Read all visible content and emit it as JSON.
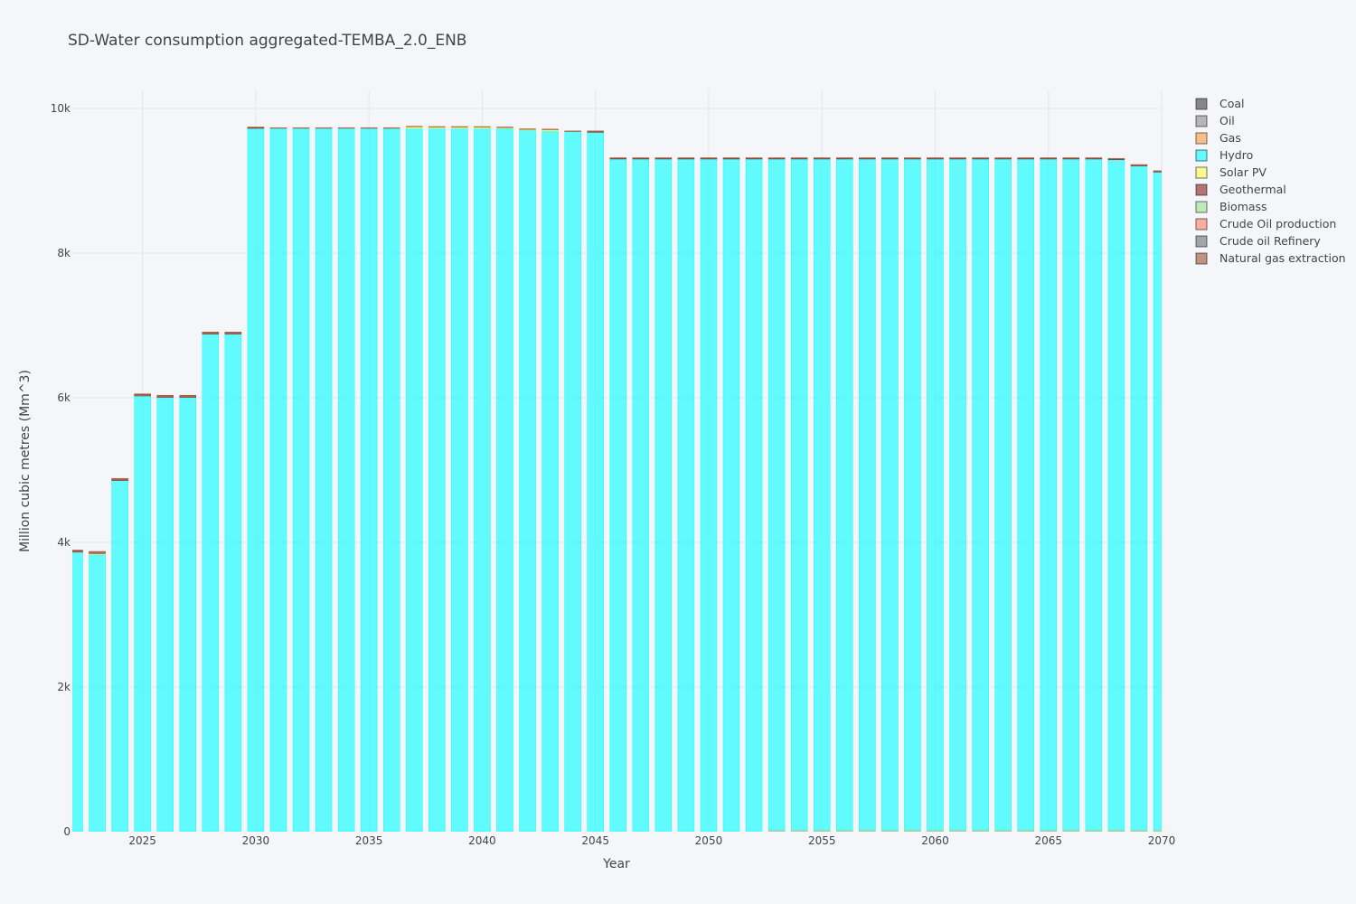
{
  "chart_data": {
    "type": "bar",
    "stacked": true,
    "title": "SD-Water consumption aggregated-TEMBA_2.0_ENB",
    "xlabel": "Year",
    "ylabel": "Million cubic metres (Mm^3)",
    "xlim": [
      2021.9,
      2070
    ],
    "ylim": [
      0,
      10250
    ],
    "x_ticks": [
      2025,
      2030,
      2035,
      2040,
      2045,
      2050,
      2055,
      2060,
      2065,
      2070
    ],
    "x_tick_labels": [
      "2025",
      "2030",
      "2035",
      "2040",
      "2045",
      "2050",
      "2055",
      "2060",
      "2065",
      "2070"
    ],
    "y_ticks": [
      0,
      2000,
      4000,
      6000,
      8000,
      10000
    ],
    "y_tick_labels": [
      "0",
      "2k",
      "4k",
      "6k",
      "8k",
      "10k"
    ],
    "grid": true,
    "legend_position": "right",
    "years": [
      2022,
      2023,
      2024,
      2025,
      2026,
      2027,
      2028,
      2029,
      2030,
      2031,
      2032,
      2033,
      2034,
      2035,
      2036,
      2037,
      2038,
      2039,
      2040,
      2041,
      2042,
      2043,
      2044,
      2045,
      2046,
      2047,
      2048,
      2049,
      2050,
      2051,
      2052,
      2053,
      2054,
      2055,
      2056,
      2057,
      2058,
      2059,
      2060,
      2061,
      2062,
      2063,
      2064,
      2065,
      2066,
      2067,
      2068,
      2069,
      2070
    ],
    "series": [
      {
        "name": "Coal",
        "color": "#3d3d3d",
        "values": [
          0,
          0,
          0,
          0,
          0,
          0,
          0,
          0,
          0,
          0,
          0,
          0,
          0,
          0,
          0,
          0,
          0,
          0,
          0,
          0,
          0,
          0,
          0,
          0,
          0,
          0,
          0,
          0,
          0,
          0,
          0,
          0,
          0,
          0,
          0,
          0,
          0,
          0,
          0,
          0,
          0,
          0,
          0,
          0,
          0,
          0,
          0,
          0,
          0
        ]
      },
      {
        "name": "Oil",
        "color": "#8c8c8c",
        "values": [
          0,
          0,
          0,
          0,
          0,
          0,
          0,
          0,
          0,
          0,
          0,
          0,
          0,
          0,
          0,
          0,
          0,
          0,
          0,
          0,
          0,
          0,
          0,
          0,
          0,
          0,
          0,
          0,
          0,
          0,
          0,
          0,
          0,
          0,
          0,
          0,
          0,
          0,
          0,
          0,
          0,
          0,
          0,
          0,
          0,
          0,
          0,
          0,
          0
        ]
      },
      {
        "name": "Gas",
        "color": "#ff9a3c",
        "values": [
          0,
          0,
          0,
          0,
          0,
          0,
          0,
          0,
          0,
          0,
          0,
          0,
          0,
          0,
          0,
          0,
          0,
          0,
          0,
          0,
          0,
          0,
          0,
          0,
          0,
          0,
          0,
          0,
          0,
          0,
          0,
          15,
          15,
          15,
          15,
          15,
          15,
          15,
          15,
          15,
          15,
          15,
          15,
          15,
          15,
          15,
          15,
          15,
          15
        ]
      },
      {
        "name": "Hydro",
        "color": "#00ffff",
        "values": [
          3865,
          3840,
          4855,
          6025,
          6005,
          6005,
          6880,
          6880,
          9725,
          9725,
          9725,
          9725,
          9725,
          9725,
          9725,
          9725,
          9725,
          9725,
          9725,
          9725,
          9700,
          9690,
          9680,
          9675,
          9305,
          9305,
          9305,
          9305,
          9305,
          9305,
          9305,
          9290,
          9290,
          9290,
          9290,
          9290,
          9290,
          9290,
          9290,
          9290,
          9290,
          9290,
          9290,
          9290,
          9290,
          9290,
          9280,
          9195,
          9110
        ]
      },
      {
        "name": "Solar PV",
        "color": "#fbfb4a",
        "values": [
          0,
          5,
          0,
          0,
          0,
          0,
          0,
          0,
          0,
          0,
          0,
          0,
          0,
          0,
          0,
          20,
          15,
          15,
          15,
          10,
          10,
          15,
          0,
          0,
          0,
          0,
          0,
          0,
          0,
          0,
          0,
          0,
          0,
          0,
          0,
          0,
          0,
          0,
          0,
          0,
          0,
          0,
          0,
          0,
          0,
          0,
          0,
          0,
          0
        ]
      },
      {
        "name": "Geothermal",
        "color": "#8b1c1c",
        "values": [
          20,
          20,
          20,
          20,
          20,
          20,
          20,
          20,
          10,
          0,
          0,
          0,
          0,
          0,
          0,
          0,
          0,
          0,
          0,
          0,
          0,
          0,
          0,
          5,
          5,
          5,
          5,
          5,
          5,
          5,
          5,
          5,
          5,
          5,
          5,
          5,
          5,
          5,
          5,
          5,
          5,
          5,
          5,
          5,
          5,
          5,
          5,
          5,
          5
        ]
      },
      {
        "name": "Biomass",
        "color": "#98e28c",
        "values": [
          0,
          0,
          0,
          0,
          0,
          0,
          0,
          0,
          0,
          0,
          0,
          0,
          0,
          0,
          0,
          0,
          0,
          0,
          0,
          0,
          0,
          0,
          0,
          0,
          0,
          0,
          0,
          0,
          0,
          0,
          0,
          0,
          0,
          0,
          0,
          0,
          0,
          0,
          0,
          0,
          0,
          0,
          0,
          0,
          0,
          0,
          0,
          0,
          0
        ]
      },
      {
        "name": "Crude Oil production",
        "color": "#ff7f5e",
        "values": [
          0,
          0,
          0,
          0,
          0,
          0,
          0,
          0,
          0,
          0,
          0,
          0,
          0,
          0,
          0,
          0,
          0,
          0,
          0,
          0,
          0,
          0,
          0,
          0,
          0,
          0,
          0,
          0,
          0,
          0,
          0,
          0,
          0,
          0,
          0,
          0,
          0,
          0,
          0,
          0,
          0,
          0,
          0,
          0,
          0,
          0,
          0,
          0,
          0
        ]
      },
      {
        "name": "Crude oil Refinery",
        "color": "#6e6e7a",
        "values": [
          0,
          0,
          0,
          0,
          0,
          0,
          0,
          0,
          0,
          0,
          0,
          0,
          0,
          0,
          0,
          0,
          0,
          0,
          0,
          0,
          0,
          0,
          0,
          0,
          0,
          0,
          0,
          0,
          0,
          0,
          0,
          0,
          0,
          0,
          0,
          0,
          0,
          0,
          0,
          0,
          0,
          0,
          0,
          0,
          0,
          0,
          0,
          0,
          0
        ]
      },
      {
        "name": "Natural gas extraction",
        "color": "#a0522d",
        "values": [
          10,
          10,
          10,
          10,
          10,
          10,
          10,
          10,
          10,
          10,
          10,
          10,
          10,
          10,
          10,
          10,
          10,
          10,
          10,
          10,
          10,
          10,
          10,
          10,
          10,
          10,
          10,
          10,
          10,
          10,
          10,
          10,
          10,
          10,
          10,
          10,
          10,
          10,
          10,
          10,
          10,
          10,
          10,
          10,
          10,
          10,
          10,
          10,
          10
        ]
      }
    ]
  }
}
